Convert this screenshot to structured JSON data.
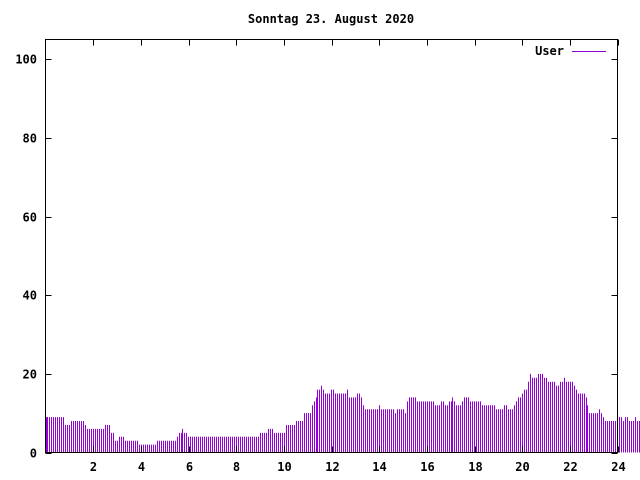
{
  "chart_data": {
    "type": "bar",
    "title": "Sonntag 23. August 2020",
    "xlabel": "",
    "ylabel": "",
    "xlim": [
      0,
      24
    ],
    "ylim": [
      0,
      105
    ],
    "x_ticks": [
      2,
      4,
      6,
      8,
      10,
      12,
      14,
      16,
      18,
      20,
      22,
      24
    ],
    "x_tick_labels": [
      "2",
      "4",
      "6",
      "8",
      "10",
      "12",
      "14",
      "16",
      "18",
      "20",
      "22",
      "24"
    ],
    "y_ticks": [
      0,
      20,
      40,
      60,
      80,
      100
    ],
    "y_tick_labels": [
      "0",
      "20",
      "40",
      "60",
      "80",
      "100"
    ],
    "grid": false,
    "legend_position": "top-right",
    "series": [
      {
        "name": "User",
        "color": "#9400d3",
        "x_start": 0,
        "x_step": 0.0833,
        "values": [
          9,
          9,
          9,
          9,
          9,
          9,
          9,
          9,
          9,
          9,
          7,
          7,
          7,
          8,
          8,
          8,
          8,
          8,
          8,
          8,
          7,
          6,
          6,
          6,
          6,
          6,
          6,
          6,
          6,
          6,
          7,
          7,
          7,
          5,
          5,
          3,
          3,
          4,
          4,
          4,
          3,
          3,
          3,
          3,
          3,
          3,
          3,
          2,
          2,
          2,
          2,
          2,
          2,
          2,
          2,
          2,
          3,
          3,
          3,
          3,
          3,
          3,
          3,
          3,
          3,
          3,
          4,
          5,
          5,
          6,
          5,
          5,
          4,
          4,
          4,
          4,
          4,
          4,
          4,
          4,
          4,
          4,
          4,
          4,
          4,
          4,
          4,
          4,
          4,
          4,
          4,
          4,
          4,
          4,
          4,
          4,
          4,
          4,
          4,
          4,
          4,
          4,
          4,
          4,
          4,
          4,
          4,
          4,
          5,
          5,
          5,
          5,
          6,
          6,
          6,
          5,
          5,
          5,
          5,
          5,
          5,
          7,
          7,
          7,
          7,
          7,
          8,
          8,
          8,
          8,
          10,
          10,
          10,
          10,
          12,
          13,
          14,
          16,
          16,
          17,
          16,
          15,
          15,
          15,
          16,
          16,
          15,
          15,
          15,
          15,
          15,
          15,
          16,
          14,
          14,
          14,
          14,
          15,
          15,
          14,
          12,
          11,
          11,
          11,
          11,
          11,
          11,
          11,
          12,
          11,
          11,
          11,
          11,
          11,
          11,
          11,
          10,
          11,
          11,
          11,
          11,
          10,
          13,
          14,
          14,
          14,
          14,
          13,
          13,
          13,
          13,
          13,
          13,
          13,
          13,
          13,
          12,
          12,
          12,
          13,
          13,
          12,
          12,
          13,
          13,
          14,
          13,
          12,
          12,
          12,
          13,
          14,
          14,
          14,
          13,
          13,
          13,
          13,
          13,
          13,
          12,
          12,
          12,
          12,
          12,
          12,
          12,
          11,
          11,
          11,
          11,
          12,
          12,
          11,
          11,
          11,
          12,
          13,
          14,
          14,
          15,
          16,
          16,
          18,
          20,
          19,
          19,
          19,
          20,
          20,
          20,
          19,
          19,
          18,
          18,
          18,
          18,
          17,
          17,
          18,
          18,
          19,
          18,
          18,
          18,
          18,
          17,
          16,
          15,
          15,
          15,
          15,
          14,
          12,
          10,
          10,
          10,
          10,
          10,
          11,
          10,
          9,
          8,
          8,
          8,
          8,
          8,
          8,
          8,
          9,
          9,
          8,
          9,
          9,
          8,
          8,
          8,
          9,
          8,
          8
        ]
      }
    ]
  }
}
